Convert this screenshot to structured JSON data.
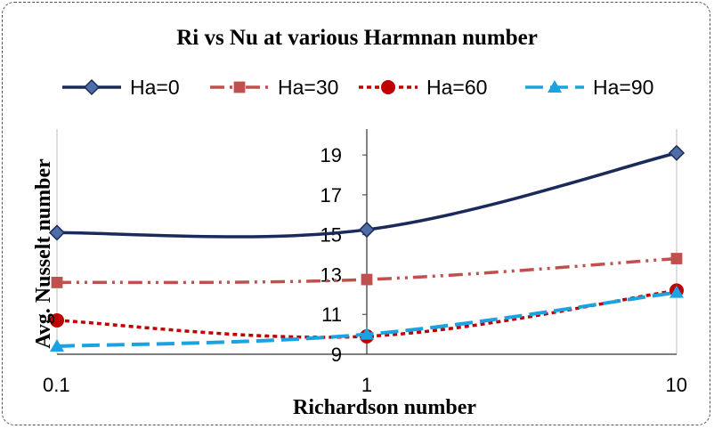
{
  "chart_data": {
    "type": "line",
    "title": "Ri vs Nu at various Harmnan number",
    "xlabel": "Richardson number",
    "ylabel": "Avg. Nusselt number",
    "x_scale": "log",
    "x": [
      0.1,
      1,
      10
    ],
    "x_tick_labels": [
      "0.1",
      "1",
      "10"
    ],
    "y_ticks": [
      9,
      11,
      13,
      15,
      17,
      19
    ],
    "ylim": [
      9,
      20.3
    ],
    "legend_position": "top",
    "grid": false,
    "series": [
      {
        "name": "Ha=0",
        "values": [
          15.1,
          15.25,
          19.1
        ],
        "color": "#1a2a5a",
        "marker": "diamond",
        "dash": "solid"
      },
      {
        "name": "Ha=30",
        "values": [
          12.6,
          12.75,
          13.8
        ],
        "color": "#c0504d",
        "marker": "square",
        "dash": "dash-dot-dot"
      },
      {
        "name": "Ha=60",
        "values": [
          10.7,
          9.9,
          12.2
        ],
        "color": "#c00000",
        "marker": "circle",
        "dash": "dotted"
      },
      {
        "name": "Ha=90",
        "values": [
          9.4,
          10.0,
          12.1
        ],
        "color": "#1aa3e0",
        "marker": "triangle",
        "dash": "long-dash"
      }
    ]
  }
}
